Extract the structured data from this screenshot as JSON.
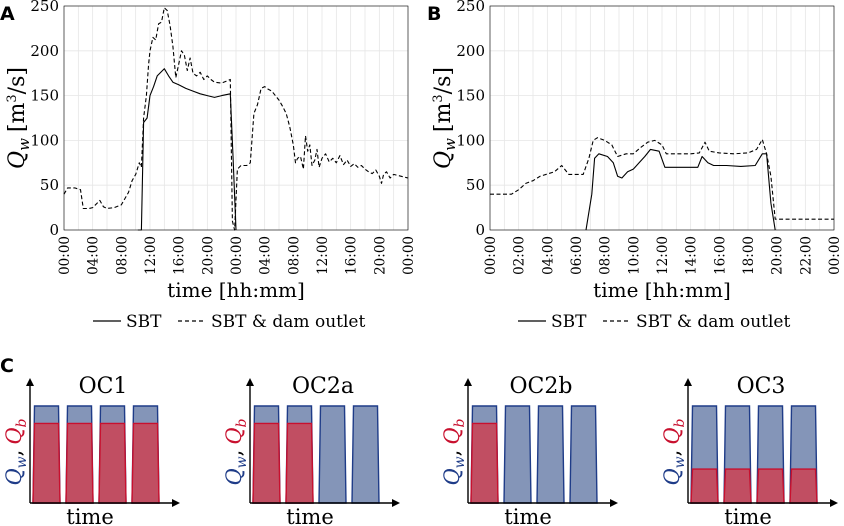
{
  "colors": {
    "blue": "#1f3c88",
    "red": "#c8102e",
    "blue_fill": "#8495b8",
    "red_fill": "#c44a5d",
    "grid": "#e6e6e6",
    "axis": "#000000"
  },
  "panel_a": {
    "letter": "A",
    "ylabel_sym": "Q",
    "ylabel_sub": "w",
    "ylabel_unit_pre": "[m",
    "ylabel_unit_exp": "3",
    "ylabel_unit_post": "/s]",
    "xlabel": "time [hh:mm]",
    "legend_solid": "SBT",
    "legend_dashed": "SBT & dam outlet"
  },
  "panel_b": {
    "letter": "B",
    "ylabel_sym": "Q",
    "ylabel_sub": "w",
    "ylabel_unit_pre": "[m",
    "ylabel_unit_exp": "3",
    "ylabel_unit_post": "/s]",
    "xlabel": "time [hh:mm]",
    "legend_solid": "SBT",
    "legend_dashed": "SBT & dam outlet"
  },
  "panel_c": {
    "letter": "C",
    "xlabel": "time",
    "ylabel_w_sym": "Q",
    "ylabel_w_sub": "w",
    "ylabel_sep": ",",
    "ylabel_b_sym": "Q",
    "ylabel_b_sub": "b",
    "schemes": [
      {
        "title": "OC1",
        "blue_pulses": 4,
        "red_pulses": 4,
        "red_level": 0.82
      },
      {
        "title": "OC2a",
        "blue_pulses": 4,
        "red_pulses": 2,
        "red_level": 0.82
      },
      {
        "title": "OC2b",
        "blue_pulses": 4,
        "red_pulses": 1,
        "red_level": 0.82
      },
      {
        "title": "OC3",
        "blue_pulses": 4,
        "red_pulses": 4,
        "red_level": 0.35
      }
    ]
  },
  "chart_data": [
    {
      "type": "line",
      "panel": "A",
      "ylim": [
        0,
        250
      ],
      "yticks": [
        "0",
        "50",
        "100",
        "150",
        "200",
        "250"
      ],
      "xlim": [
        0,
        48
      ],
      "xticks": [
        "00:00",
        "04:00",
        "08:00",
        "12:00",
        "16:00",
        "20:00",
        "00:00",
        "04:00",
        "08:00",
        "12:00",
        "16:00",
        "20:00",
        "00:00"
      ],
      "xlabel": "time [hh:mm]",
      "ylabel": "Q_w [m^3/s]",
      "series": [
        {
          "name": "SBT",
          "style": "solid",
          "points": [
            [
              10.3,
              0
            ],
            [
              10.8,
              0
            ],
            [
              11.1,
              120
            ],
            [
              11.6,
              125
            ],
            [
              12.0,
              150
            ],
            [
              12.5,
              160
            ],
            [
              13.0,
              172
            ],
            [
              14.0,
              180
            ],
            [
              14.6,
              172
            ],
            [
              15.2,
              165
            ],
            [
              16.0,
              162
            ],
            [
              17.0,
              158
            ],
            [
              18.0,
              155
            ],
            [
              19.0,
              152
            ],
            [
              20.0,
              150
            ],
            [
              21.0,
              148
            ],
            [
              22.0,
              150
            ],
            [
              23.2,
              152
            ],
            [
              23.6,
              80
            ],
            [
              24.0,
              0
            ]
          ]
        },
        {
          "name": "SBT & dam outlet",
          "style": "dashed",
          "points": [
            [
              0,
              40
            ],
            [
              0.5,
              47
            ],
            [
              1.5,
              47
            ],
            [
              2.3,
              45
            ],
            [
              2.7,
              24
            ],
            [
              3.5,
              24
            ],
            [
              4.0,
              25
            ],
            [
              4.5,
              29
            ],
            [
              5.0,
              33
            ],
            [
              5.5,
              26
            ],
            [
              6.0,
              24
            ],
            [
              7.0,
              25
            ],
            [
              8.0,
              28
            ],
            [
              8.5,
              35
            ],
            [
              9.0,
              42
            ],
            [
              9.5,
              55
            ],
            [
              10.0,
              62
            ],
            [
              10.5,
              75
            ],
            [
              10.8,
              70
            ],
            [
              11.1,
              125
            ],
            [
              11.5,
              150
            ],
            [
              11.8,
              185
            ],
            [
              12.0,
              200
            ],
            [
              12.4,
              215
            ],
            [
              12.8,
              212
            ],
            [
              13.2,
              230
            ],
            [
              13.6,
              232
            ],
            [
              14.0,
              248
            ],
            [
              14.4,
              245
            ],
            [
              14.8,
              228
            ],
            [
              15.2,
              205
            ],
            [
              15.6,
              170
            ],
            [
              16.0,
              185
            ],
            [
              16.4,
              200
            ],
            [
              16.8,
              195
            ],
            [
              17.2,
              178
            ],
            [
              17.6,
              192
            ],
            [
              18.0,
              175
            ],
            [
              18.5,
              172
            ],
            [
              19.0,
              176
            ],
            [
              19.5,
              168
            ],
            [
              20.0,
              172
            ],
            [
              20.5,
              168
            ],
            [
              21.0,
              165
            ],
            [
              22.0,
              164
            ],
            [
              23.2,
              168
            ],
            [
              23.5,
              10
            ],
            [
              23.8,
              0
            ],
            [
              24.2,
              68
            ],
            [
              24.7,
              72
            ],
            [
              25.5,
              72
            ],
            [
              26.0,
              75
            ],
            [
              26.5,
              130
            ],
            [
              27.0,
              140
            ],
            [
              27.5,
              158
            ],
            [
              28.0,
              160
            ],
            [
              28.5,
              157
            ],
            [
              29.0,
              155
            ],
            [
              29.5,
              150
            ],
            [
              30.0,
              145
            ],
            [
              30.5,
              138
            ],
            [
              31.0,
              130
            ],
            [
              31.5,
              115
            ],
            [
              32.0,
              95
            ],
            [
              32.3,
              75
            ],
            [
              32.6,
              80
            ],
            [
              33.0,
              82
            ],
            [
              33.4,
              68
            ],
            [
              33.7,
              105
            ],
            [
              34.0,
              88
            ],
            [
              34.3,
              95
            ],
            [
              34.6,
              72
            ],
            [
              35.0,
              78
            ],
            [
              35.3,
              90
            ],
            [
              35.6,
              70
            ],
            [
              36.0,
              80
            ],
            [
              36.5,
              85
            ],
            [
              37.0,
              76
            ],
            [
              37.5,
              80
            ],
            [
              38.0,
              75
            ],
            [
              38.5,
              83
            ],
            [
              39.0,
              73
            ],
            [
              39.5,
              78
            ],
            [
              40.0,
              71
            ],
            [
              40.5,
              74
            ],
            [
              41.0,
              70
            ],
            [
              41.5,
              72
            ],
            [
              42.0,
              68
            ],
            [
              42.5,
              65
            ],
            [
              43.0,
              63
            ],
            [
              43.5,
              67
            ],
            [
              44.0,
              60
            ],
            [
              44.3,
              52
            ],
            [
              44.6,
              62
            ],
            [
              45.0,
              65
            ],
            [
              45.5,
              58
            ],
            [
              46.0,
              62
            ],
            [
              47.0,
              60
            ],
            [
              48.0,
              58
            ]
          ]
        }
      ]
    },
    {
      "type": "line",
      "panel": "B",
      "ylim": [
        0,
        250
      ],
      "yticks": [
        "0",
        "50",
        "100",
        "150",
        "200",
        "250"
      ],
      "xlim": [
        0,
        24
      ],
      "xticks": [
        "00:00",
        "02:00",
        "04:00",
        "06:00",
        "08:00",
        "10:00",
        "12:00",
        "14:00",
        "16:00",
        "18:00",
        "20:00",
        "22:00",
        "00:00"
      ],
      "xlabel": "time [hh:mm]",
      "ylabel": "Q_w [m^3/s]",
      "series": [
        {
          "name": "SBT",
          "style": "solid",
          "points": [
            [
              6.7,
              0
            ],
            [
              7.1,
              40
            ],
            [
              7.3,
              80
            ],
            [
              7.6,
              85
            ],
            [
              8.2,
              82
            ],
            [
              8.6,
              75
            ],
            [
              8.9,
              60
            ],
            [
              9.2,
              58
            ],
            [
              9.6,
              65
            ],
            [
              10.0,
              68
            ],
            [
              10.4,
              75
            ],
            [
              10.8,
              82
            ],
            [
              11.2,
              90
            ],
            [
              11.8,
              88
            ],
            [
              12.2,
              70
            ],
            [
              12.6,
              70
            ],
            [
              13.5,
              70
            ],
            [
              14.5,
              70
            ],
            [
              14.8,
              82
            ],
            [
              15.2,
              75
            ],
            [
              15.6,
              72
            ],
            [
              16.5,
              72
            ],
            [
              17.5,
              71
            ],
            [
              18.5,
              72
            ],
            [
              19.0,
              85
            ],
            [
              19.3,
              85
            ],
            [
              19.6,
              30
            ],
            [
              19.9,
              0
            ]
          ]
        },
        {
          "name": "SBT & dam outlet",
          "style": "dashed",
          "points": [
            [
              0,
              40
            ],
            [
              1.5,
              40
            ],
            [
              2.0,
              45
            ],
            [
              2.5,
              52
            ],
            [
              3.0,
              55
            ],
            [
              3.5,
              60
            ],
            [
              4.5,
              65
            ],
            [
              5.0,
              72
            ],
            [
              5.5,
              62
            ],
            [
              6.5,
              62
            ],
            [
              6.9,
              80
            ],
            [
              7.2,
              100
            ],
            [
              7.5,
              103
            ],
            [
              8.0,
              100
            ],
            [
              8.5,
              95
            ],
            [
              8.9,
              82
            ],
            [
              9.5,
              85
            ],
            [
              10.0,
              85
            ],
            [
              10.5,
              92
            ],
            [
              11.0,
              98
            ],
            [
              11.5,
              100
            ],
            [
              12.0,
              95
            ],
            [
              12.3,
              85
            ],
            [
              13.0,
              85
            ],
            [
              14.0,
              85
            ],
            [
              14.6,
              86
            ],
            [
              15.0,
              98
            ],
            [
              15.3,
              88
            ],
            [
              16.0,
              86
            ],
            [
              17.0,
              85
            ],
            [
              18.0,
              86
            ],
            [
              18.6,
              90
            ],
            [
              19.0,
              101
            ],
            [
              19.3,
              85
            ],
            [
              19.6,
              60
            ],
            [
              19.9,
              12
            ],
            [
              22.0,
              12
            ],
            [
              24.0,
              12
            ]
          ]
        }
      ]
    }
  ]
}
